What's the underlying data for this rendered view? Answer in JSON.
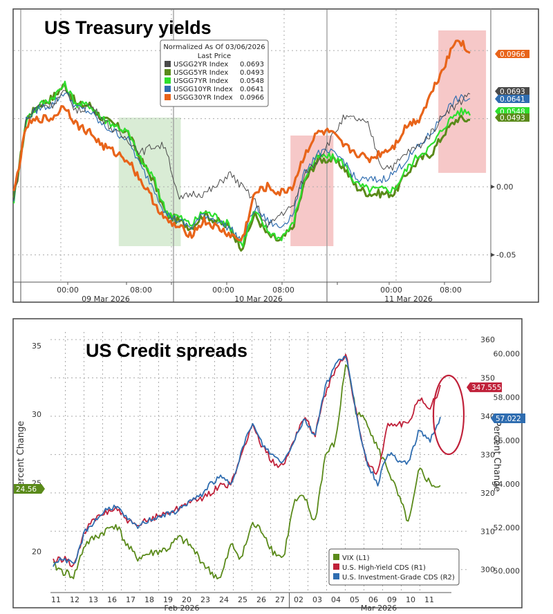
{
  "chart_data": [
    {
      "type": "line",
      "title": "US Treasury yields",
      "legend": {
        "header": "Normalized As Of 03/06/2026",
        "subheader": "Last Price",
        "entries": [
          {
            "name": "USGG2YR Index",
            "value": "0.0693",
            "color": "#4a4a4a"
          },
          {
            "name": "USGG5YR Index",
            "value": "0.0493",
            "color": "#5a8a1a"
          },
          {
            "name": "USGG7YR Index",
            "value": "0.0548",
            "color": "#2ee02e"
          },
          {
            "name": "USGG10YR Index",
            "value": "0.0641",
            "color": "#2f6db0"
          },
          {
            "name": "USGG30YR Index",
            "value": "0.0966",
            "color": "#e8641a"
          }
        ]
      },
      "x_ticks": [
        "00:00",
        "08:00",
        "00:00",
        "08:00",
        "00:00",
        "08:00"
      ],
      "x_groups": [
        "09 Mar 2026",
        "10 Mar 2026",
        "11 Mar 2026"
      ],
      "y_ticks": [
        "0.00",
        "-0.05"
      ],
      "ylim": [
        -0.07,
        0.13
      ],
      "last_value_labels": [
        {
          "text": "0.0966",
          "color": "#e8641a"
        },
        {
          "text": "0.0693",
          "color": "#4a4a4a"
        },
        {
          "text": "0.0641",
          "color": "#2f6db0"
        },
        {
          "text": "0.0548",
          "color": "#2ee02e"
        },
        {
          "text": "0.0493",
          "color": "#5a8a1a"
        }
      ],
      "shaded_regions": [
        {
          "color": "#d9ecd5",
          "x_start_frac": 0.22,
          "x_end_frac": 0.35
        },
        {
          "color": "#f6c8c8",
          "x_start_frac": 0.58,
          "x_end_frac": 0.67
        },
        {
          "color": "#f6c8c8",
          "x_start_frac": 0.89,
          "x_end_frac": 0.99
        }
      ],
      "series": [
        {
          "name": "USGG2YR Index",
          "values": [
            -0.01,
            0.05,
            0.06,
            0.06,
            0.07,
            0.055,
            0.06,
            0.05,
            0.04,
            0.035,
            0.025,
            0.03,
            0.03,
            -0.01,
            -0.005,
            -0.005,
            0.0,
            0.01,
            0.0,
            -0.01,
            -0.03,
            -0.02,
            -0.015,
            0.01,
            0.02,
            0.035,
            0.05,
            0.05,
            0.045,
            0.015,
            0.015,
            0.025,
            0.03,
            0.04,
            0.055,
            0.06,
            0.07
          ]
        },
        {
          "name": "USGG5YR Index",
          "values": [
            -0.01,
            0.05,
            0.06,
            0.065,
            0.075,
            0.06,
            0.06,
            0.05,
            0.045,
            0.04,
            0.02,
            0.005,
            -0.02,
            -0.025,
            -0.03,
            -0.02,
            -0.025,
            -0.03,
            -0.045,
            -0.02,
            -0.035,
            -0.04,
            -0.03,
            0.005,
            0.02,
            0.02,
            0.015,
            0.0,
            -0.005,
            -0.005,
            -0.005,
            0.01,
            0.02,
            0.025,
            0.04,
            0.05,
            0.049
          ]
        },
        {
          "name": "USGG7YR Index",
          "values": [
            -0.01,
            0.05,
            0.06,
            0.065,
            0.075,
            0.06,
            0.06,
            0.05,
            0.045,
            0.04,
            0.02,
            0.007,
            -0.018,
            -0.022,
            -0.028,
            -0.018,
            -0.022,
            -0.028,
            -0.043,
            -0.018,
            -0.032,
            -0.038,
            -0.028,
            0.008,
            0.022,
            0.022,
            0.018,
            0.002,
            -0.002,
            -0.002,
            -0.002,
            0.013,
            0.024,
            0.03,
            0.045,
            0.055,
            0.055
          ]
        },
        {
          "name": "USGG10YR Index",
          "values": [
            -0.01,
            0.05,
            0.058,
            0.06,
            0.07,
            0.058,
            0.055,
            0.045,
            0.04,
            0.035,
            0.015,
            0.0,
            -0.02,
            -0.025,
            -0.03,
            -0.02,
            -0.025,
            -0.03,
            -0.04,
            -0.015,
            -0.025,
            -0.03,
            -0.02,
            0.012,
            0.025,
            0.025,
            0.02,
            0.005,
            0.005,
            0.005,
            0.01,
            0.02,
            0.03,
            0.04,
            0.055,
            0.065,
            0.064
          ]
        },
        {
          "name": "USGG30YR Index",
          "values": [
            -0.005,
            0.045,
            0.05,
            0.05,
            0.06,
            0.045,
            0.04,
            0.03,
            0.025,
            0.02,
            0.005,
            -0.01,
            -0.025,
            -0.03,
            -0.035,
            -0.025,
            -0.03,
            -0.035,
            -0.04,
            -0.005,
            0.0,
            -0.005,
            0.0,
            0.025,
            0.04,
            0.04,
            0.03,
            0.025,
            0.02,
            0.025,
            0.03,
            0.045,
            0.05,
            0.07,
            0.09,
            0.11,
            0.097
          ]
        }
      ]
    },
    {
      "type": "line",
      "title": "US Credit spreads",
      "legend": {
        "entries": [
          {
            "name": "VIX (L1)",
            "color": "#5a8a1a"
          },
          {
            "name": "U.S. High-Yield CDS (R1)",
            "color": "#c0213a"
          },
          {
            "name": "U.S. Investment-Grade CDS (R2)",
            "color": "#2f6db0"
          }
        ]
      },
      "x_ticks": [
        "11",
        "12",
        "13",
        "16",
        "17",
        "18",
        "19",
        "20",
        "23",
        "24",
        "25",
        "26",
        "27",
        "02",
        "03",
        "04",
        "05",
        "06",
        "09",
        "10",
        "11"
      ],
      "x_groups": [
        "Feb 2026",
        "Mar 2026"
      ],
      "y_left": {
        "label": "Percent Change",
        "ticks": [
          "35",
          "30",
          "25",
          "20"
        ],
        "range": [
          17,
          36
        ]
      },
      "y_mid": {
        "ticks": [
          "360",
          "350",
          "340",
          "330",
          "320",
          "310",
          "300"
        ],
        "range": [
          294,
          362
        ]
      },
      "y_right": {
        "label": "Percent Change",
        "ticks": [
          "60.000",
          "58.000",
          "56.000",
          "54.000",
          "52.000",
          "50.000"
        ],
        "range": [
          49,
          61
        ]
      },
      "last_value_labels": [
        {
          "text": "24.56",
          "color": "#5a8a1a",
          "axis": "left"
        },
        {
          "text": "347.555",
          "color": "#c0213a",
          "axis": "mid"
        },
        {
          "text": "57.022",
          "color": "#2f6db0",
          "axis": "right"
        }
      ],
      "annotation": {
        "type": "ellipse",
        "color": "#c0213a"
      },
      "series": [
        {
          "name": "VIX (L1)",
          "axis": "left",
          "values": [
            19.0,
            18.5,
            18.2,
            20.5,
            21.0,
            21.5,
            22.0,
            20.5,
            19.5,
            19.8,
            20.0,
            20.2,
            21.0,
            20.5,
            19.5,
            18.5,
            18.0,
            20.5,
            19.5,
            22.0,
            21.5,
            20.0,
            19.5,
            23.5,
            24.0,
            22.0,
            27.0,
            28.0,
            34.0,
            30.0,
            29.5,
            27.5,
            26.0,
            24.0,
            22.0,
            26.0,
            25.0,
            24.56
          ]
        },
        {
          "name": "U.S. High-Yield CDS (R1)",
          "axis": "mid",
          "values": [
            302,
            303,
            301,
            310,
            313,
            315,
            316,
            313,
            311,
            313,
            314,
            315,
            316,
            318,
            318,
            320,
            322,
            322,
            330,
            338,
            332,
            328,
            327,
            334,
            340,
            335,
            346,
            352,
            356,
            340,
            328,
            325,
            338,
            338,
            338,
            345,
            342,
            347.555
          ]
        },
        {
          "name": "U.S. Investment-Grade CDS (R2)",
          "axis": "right",
          "values": [
            50.3,
            50.6,
            50.2,
            51.8,
            52.3,
            52.8,
            53.0,
            52.4,
            52.0,
            52.3,
            52.5,
            52.6,
            52.8,
            53.2,
            53.4,
            54.0,
            54.3,
            54.0,
            55.5,
            56.8,
            55.8,
            55.3,
            55.0,
            56.0,
            57.0,
            56.2,
            58.5,
            59.5,
            60.0,
            57.0,
            55.0,
            54.0,
            55.5,
            55.0,
            55.0,
            56.5,
            56.0,
            57.022
          ]
        }
      ]
    }
  ]
}
